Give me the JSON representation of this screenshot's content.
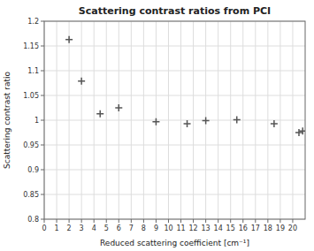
{
  "chart_data": {
    "type": "scatter",
    "title": "Scattering contrast ratios from PCI",
    "xlabel": "Reduced scattering coefficient [cm⁻¹]",
    "ylabel": "Scattering contrast ratio",
    "x": [
      2,
      3,
      4.5,
      6,
      9,
      11.5,
      13,
      15.5,
      18.5,
      20.5,
      20.8
    ],
    "y": [
      1.163,
      1.079,
      1.013,
      1.025,
      0.997,
      0.993,
      0.999,
      1.001,
      0.993,
      0.975,
      0.978
    ],
    "xlim": [
      0,
      21
    ],
    "ylim": [
      0.8,
      1.2
    ],
    "xticks": [
      0,
      1,
      2,
      3,
      4,
      5,
      6,
      7,
      8,
      9,
      10,
      11,
      12,
      13,
      14,
      15,
      16,
      17,
      18,
      19,
      20
    ],
    "yticks": [
      0.8,
      0.85,
      0.9,
      0.95,
      1,
      1.05,
      1.1,
      1.15,
      1.2
    ],
    "color": "#555555",
    "marker": "plus",
    "grid": true
  }
}
